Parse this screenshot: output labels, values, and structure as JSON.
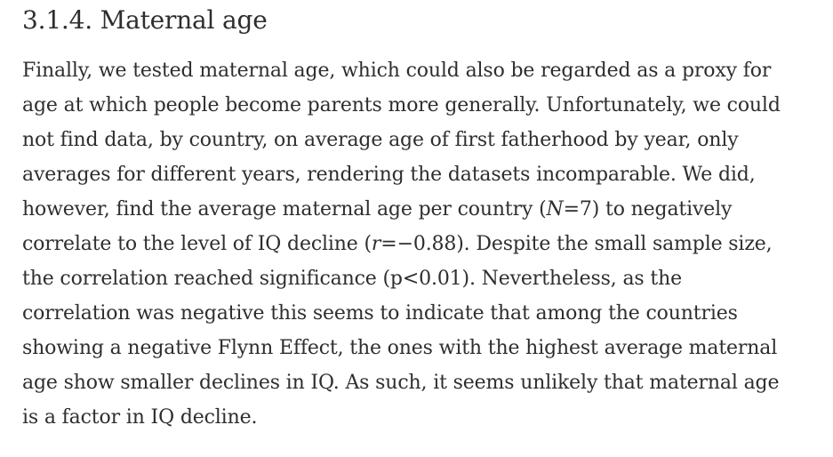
{
  "section": {
    "heading": "3.1.4. Maternal age",
    "paragraph": {
      "line1": "Finally, we tested maternal age, which could also be regarded as a proxy for",
      "line2": "age at which people become parents more generally. Unfortunately, we could",
      "line3": "not find data, by country, on average age of first fatherhood by year, only",
      "line4": "averages for different years, rendering the datasets incomparable. We did,",
      "line5": {
        "before": "however, find the average maternal age per country (",
        "var_n": "N",
        "after": "=7) to negatively"
      },
      "line6": {
        "before": "correlate to the level of IQ decline (",
        "var_r": "r",
        "after": "=−0.88). Despite the small sample size,"
      },
      "line7": "the correlation reached significance (p<0.01). Nevertheless, as the",
      "line8": "correlation was negative this seems to indicate that among the countries",
      "line9": "showing a negative Flynn Effect, the ones with the highest average maternal",
      "line10": "age show smaller declines in IQ. As such, it seems unlikely that maternal age",
      "line11": "is a factor in IQ decline."
    }
  }
}
